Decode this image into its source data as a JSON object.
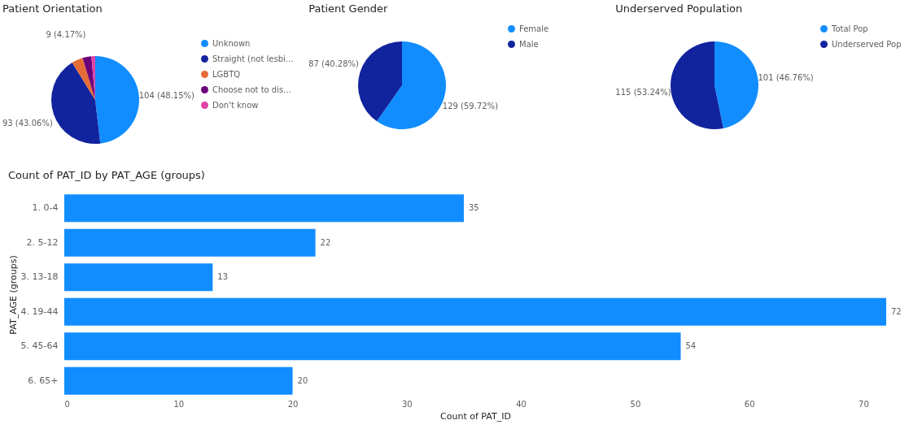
{
  "chart_data": [
    {
      "type": "pie",
      "title": "Patient Orientation",
      "categories": [
        "Unknown",
        "Straight (not lesbi...",
        "LGBTQ",
        "Choose not to dis...",
        "Don't know"
      ],
      "values": [
        104,
        93,
        9,
        7,
        3
      ],
      "colors": [
        "#118dff",
        "#12239e",
        "#e66c37",
        "#6b007b",
        "#e044a7"
      ],
      "value_labels": [
        "104 (48.15%)",
        "93 (43.06%)",
        "9 (4.17%)",
        null,
        null
      ],
      "legend": "right"
    },
    {
      "type": "pie",
      "title": "Patient Gender",
      "categories": [
        "Female",
        "Male"
      ],
      "values": [
        129,
        87
      ],
      "colors": [
        "#118dff",
        "#12239e"
      ],
      "value_labels": [
        "129 (59.72%)",
        "87 (40.28%)"
      ],
      "legend": "right"
    },
    {
      "type": "pie",
      "title": "Underserved Population",
      "categories": [
        "Total Pop",
        "Underserved Pop"
      ],
      "values": [
        101,
        115
      ],
      "colors": [
        "#118dff",
        "#12239e"
      ],
      "value_labels": [
        "101 (46.76%)",
        "115 (53.24%)"
      ],
      "legend": "right"
    },
    {
      "type": "bar",
      "orientation": "horizontal",
      "title": "Count of PAT_ID by PAT_AGE (groups)",
      "xlabel": "Count of PAT_ID",
      "ylabel": "PAT_AGE (groups)",
      "categories": [
        "1. 0-4",
        "2. 5-12",
        "3. 13-18",
        "4. 19-44",
        "5. 45-64",
        "6. 65+"
      ],
      "series": [
        {
          "color": "#118dff",
          "values": [
            35,
            22,
            13,
            72,
            54,
            20
          ]
        }
      ],
      "xlim": [
        0,
        72
      ],
      "xticks": [
        0,
        10,
        20,
        30,
        40,
        50,
        60,
        70
      ],
      "data_labels": true
    }
  ]
}
